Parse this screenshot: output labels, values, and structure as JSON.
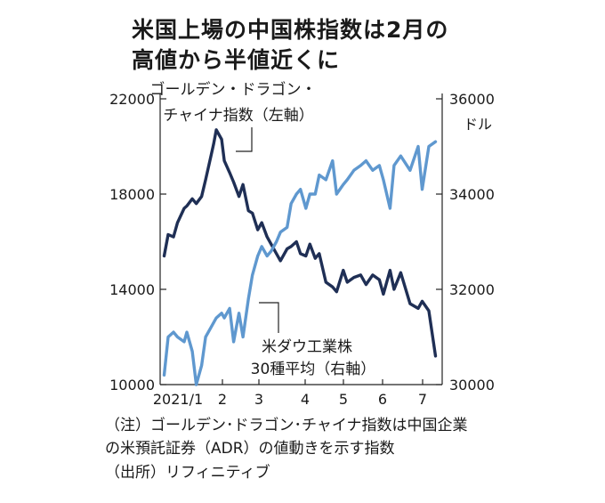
{
  "title_line1": "米国上場の中国株指数は2月の",
  "title_line2": "高値から半値近くに",
  "notes": {
    "line1": "（注）ゴールデン･ドラゴン･チャイナ指数は中国企業",
    "line2": "の米預託証券（ADR）の値動きを示す指数",
    "line3": "（出所）リフィニティブ"
  },
  "chart_data": {
    "type": "line",
    "x_ticks": [
      "2021/1",
      "2",
      "3",
      "4",
      "5",
      "6",
      "7"
    ],
    "left_axis": {
      "ylim": [
        10000,
        22000
      ],
      "ticks": [
        "10000",
        "14000",
        "18000",
        "22000"
      ]
    },
    "right_axis": {
      "ylim": [
        30000,
        36000
      ],
      "ticks": [
        "30000",
        "32000",
        "34000",
        "36000"
      ],
      "unit": "ドル"
    },
    "series": [
      {
        "name_lines": [
          "ゴールデン・ドラゴン・",
          "チャイナ指数（左軸）"
        ],
        "axis": "left",
        "color": "#1f2f55",
        "x": [
          "2021-01-04",
          "2021-01-07",
          "2021-01-11",
          "2021-01-14",
          "2021-01-19",
          "2021-01-21",
          "2021-01-25",
          "2021-01-28",
          "2021-02-01",
          "2021-02-04",
          "2021-02-08",
          "2021-02-10",
          "2021-02-12",
          "2021-02-16",
          "2021-02-18",
          "2021-02-22",
          "2021-02-25",
          "2021-03-01",
          "2021-03-04",
          "2021-03-08",
          "2021-03-11",
          "2021-03-15",
          "2021-03-18",
          "2021-03-22",
          "2021-03-25",
          "2021-03-29",
          "2021-04-01",
          "2021-04-06",
          "2021-04-09",
          "2021-04-13",
          "2021-04-16",
          "2021-04-20",
          "2021-04-23",
          "2021-04-27",
          "2021-04-30",
          "2021-05-05",
          "2021-05-10",
          "2021-05-13",
          "2021-05-18",
          "2021-05-21",
          "2021-05-26",
          "2021-05-31",
          "2021-06-04",
          "2021-06-09",
          "2021-06-14",
          "2021-06-17",
          "2021-06-22",
          "2021-06-25",
          "2021-06-30",
          "2021-07-07",
          "2021-07-13",
          "2021-07-16",
          "2021-07-21",
          "2021-07-26"
        ],
        "values": [
          15400,
          16300,
          16200,
          16800,
          17400,
          17500,
          17800,
          17600,
          17900,
          18600,
          19600,
          20100,
          20700,
          20300,
          19400,
          18900,
          18500,
          17900,
          18400,
          17300,
          17200,
          16500,
          16800,
          16200,
          15900,
          15500,
          15200,
          15700,
          15800,
          16000,
          15500,
          15400,
          15900,
          15300,
          15500,
          14300,
          14100,
          13900,
          14800,
          14300,
          14500,
          14600,
          14200,
          14600,
          14400,
          13800,
          14800,
          14000,
          14700,
          13400,
          13200,
          13500,
          13100,
          11200
        ]
      },
      {
        "name_lines": [
          "米ダウ工業株",
          "30種平均（右軸）"
        ],
        "axis": "right",
        "color": "#5f98cf",
        "x": [
          "2021-01-04",
          "2021-01-07",
          "2021-01-11",
          "2021-01-14",
          "2021-01-19",
          "2021-01-21",
          "2021-01-25",
          "2021-01-28",
          "2021-02-01",
          "2021-02-04",
          "2021-02-08",
          "2021-02-10",
          "2021-02-12",
          "2021-02-16",
          "2021-02-18",
          "2021-02-22",
          "2021-02-25",
          "2021-03-01",
          "2021-03-04",
          "2021-03-08",
          "2021-03-11",
          "2021-03-15",
          "2021-03-18",
          "2021-03-22",
          "2021-03-25",
          "2021-03-29",
          "2021-04-01",
          "2021-04-06",
          "2021-04-09",
          "2021-04-13",
          "2021-04-16",
          "2021-04-20",
          "2021-04-23",
          "2021-04-27",
          "2021-04-30",
          "2021-05-05",
          "2021-05-10",
          "2021-05-13",
          "2021-05-18",
          "2021-05-21",
          "2021-05-26",
          "2021-05-31",
          "2021-06-04",
          "2021-06-09",
          "2021-06-14",
          "2021-06-17",
          "2021-06-22",
          "2021-06-25",
          "2021-06-30",
          "2021-07-07",
          "2021-07-13",
          "2021-07-16",
          "2021-07-21",
          "2021-07-26"
        ],
        "values": [
          30200,
          31000,
          31100,
          31000,
          30900,
          31100,
          30700,
          30000,
          30400,
          31000,
          31200,
          31300,
          31400,
          31500,
          31400,
          31600,
          30900,
          31500,
          31000,
          31800,
          32300,
          32700,
          32900,
          32700,
          32800,
          33000,
          33200,
          33300,
          33800,
          34000,
          34100,
          33700,
          34000,
          34000,
          34400,
          34300,
          34700,
          34000,
          34200,
          34300,
          34500,
          34600,
          34700,
          34500,
          34600,
          34300,
          33700,
          34600,
          34800,
          34500,
          35000,
          34100,
          35000,
          35100
        ]
      }
    ]
  }
}
